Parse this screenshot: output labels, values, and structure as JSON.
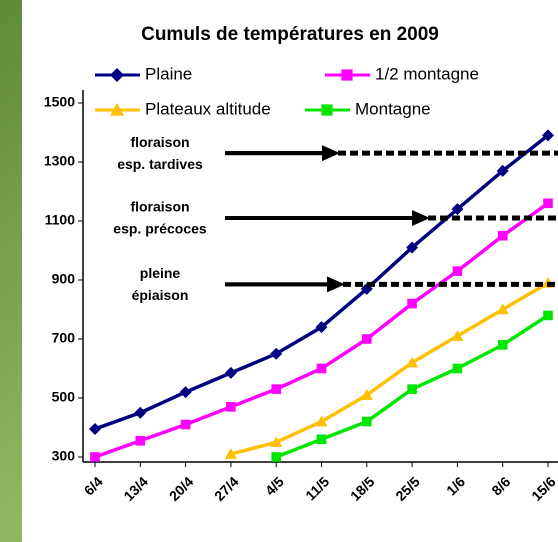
{
  "chart_data": {
    "type": "line",
    "title": "Cumuls de températures en 2009",
    "categories": [
      "6/4",
      "13/4",
      "20/4",
      "27/4",
      "4/5",
      "11/5",
      "18/5",
      "25/5",
      "1/6",
      "8/6",
      "15/6"
    ],
    "series": [
      {
        "name": "Plaine",
        "color": "#000080",
        "marker": "diamond",
        "values": [
          395,
          450,
          520,
          585,
          650,
          740,
          870,
          1010,
          1140,
          1270,
          1390
        ]
      },
      {
        "name": "1/2 montagne",
        "color": "#ff00ff",
        "marker": "square",
        "values": [
          300,
          355,
          410,
          470,
          530,
          600,
          700,
          820,
          930,
          1050,
          1160
        ]
      },
      {
        "name": "Plateaux altitude",
        "color": "#ffc000",
        "marker": "triangle",
        "values": [
          null,
          null,
          null,
          310,
          350,
          420,
          510,
          620,
          710,
          800,
          890
        ]
      },
      {
        "name": "Montagne",
        "color": "#00e600",
        "marker": "square",
        "values": [
          null,
          null,
          null,
          null,
          300,
          360,
          420,
          530,
          600,
          680,
          780
        ]
      }
    ],
    "ylim": [
      283,
      1544
    ],
    "yticks": [
      300,
      500,
      700,
      900,
      1100,
      1300,
      1500
    ],
    "grid": false,
    "annotations": [
      {
        "lines": [
          "floraison",
          "esp. tardives"
        ],
        "value": 1330
      },
      {
        "lines": [
          "floraison",
          "esp. précoces"
        ],
        "value": 1110
      },
      {
        "lines": [
          "pleine",
          "épiaison"
        ],
        "value": 885
      }
    ]
  }
}
